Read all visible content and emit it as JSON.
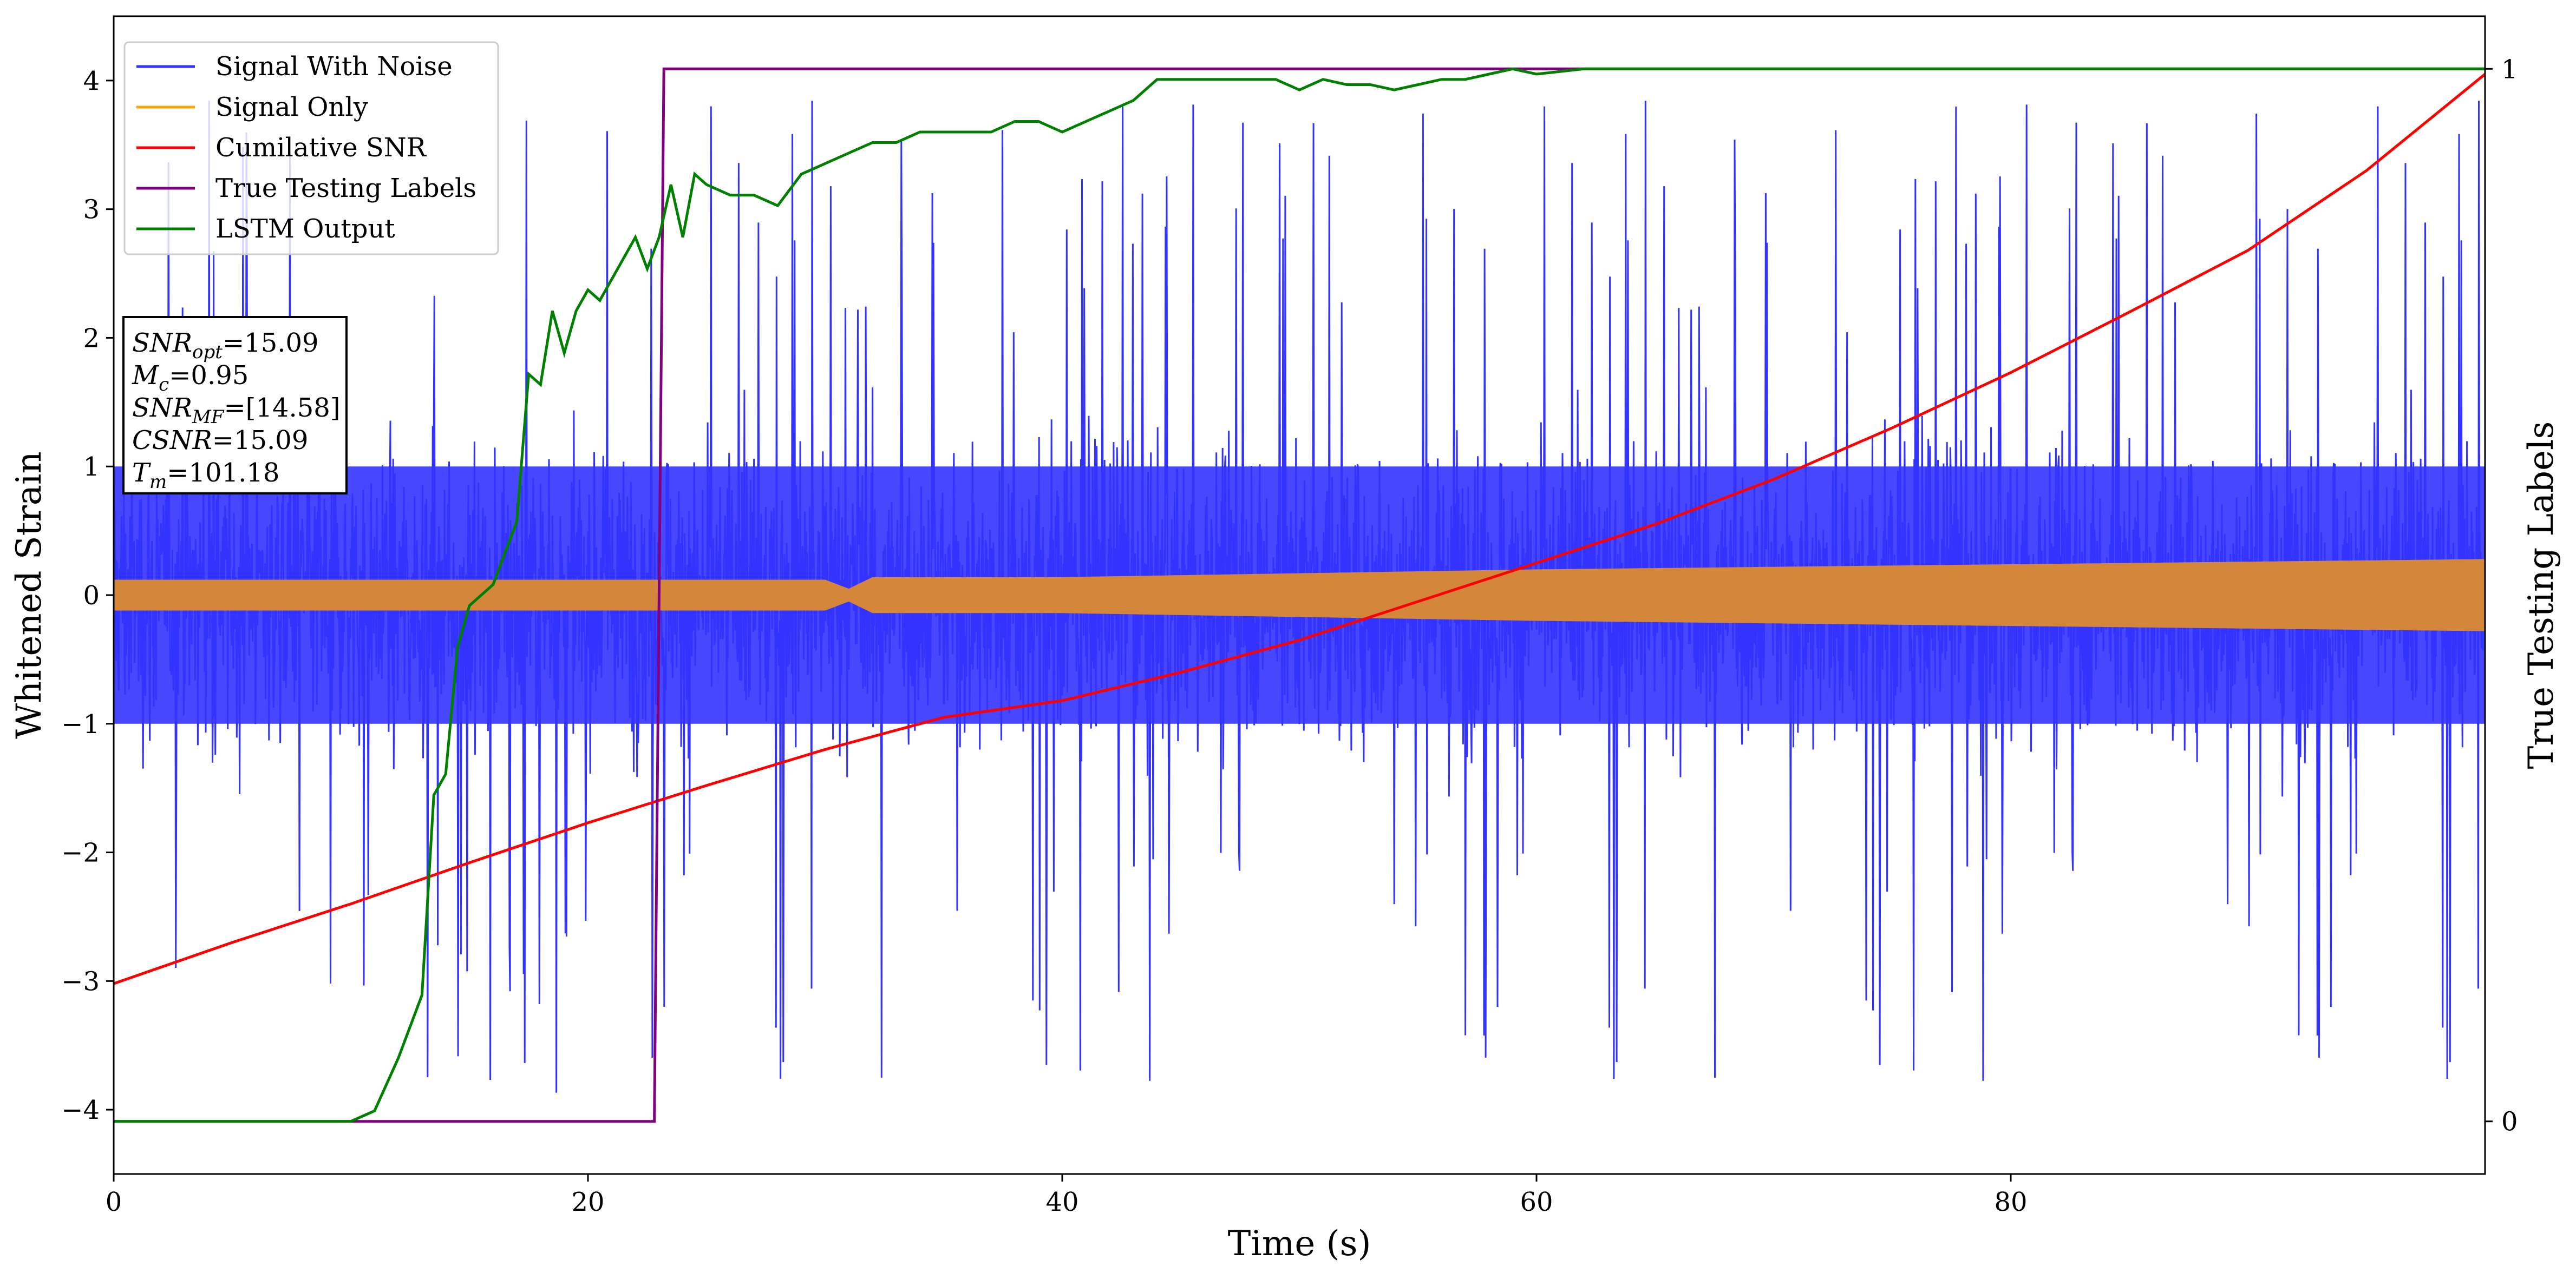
{
  "chart_data": {
    "type": "line",
    "xlabel": "Time (s)",
    "ylabel": "Whitened Strain",
    "ylabel_right": "True Testing Labels",
    "xlim": [
      0,
      100
    ],
    "ylim": [
      -4.5,
      4.5
    ],
    "ylim_right": [
      -0.05,
      1.05
    ],
    "x_ticks": [
      0,
      20,
      40,
      60,
      80
    ],
    "y_ticks": [
      -4,
      -3,
      -2,
      -1,
      0,
      1,
      2,
      3,
      4
    ],
    "y_ticks_right": [
      0,
      1
    ],
    "grid": false,
    "legend_position": "upper left",
    "colors": {
      "signal_with_noise": "#3333ff",
      "signal_only": "#ffa500",
      "signal_overlap": "#d4873a",
      "cumulative_snr": "#ff0000",
      "true_labels": "#800080",
      "lstm_output": "#008000"
    },
    "series": [
      {
        "name": "Signal With Noise",
        "axis": "left",
        "description_values": "dense noise band",
        "band": {
          "core_low": -1.0,
          "core_high": 1.0,
          "spike_low": -4.1,
          "spike_high": 4.1
        }
      },
      {
        "name": "Signal Only",
        "axis": "left",
        "x": [
          0,
          10,
          20,
          30,
          31,
          32,
          40,
          50,
          60,
          70,
          80,
          90,
          100
        ],
        "amplitude": [
          0.12,
          0.12,
          0.12,
          0.12,
          0.05,
          0.14,
          0.14,
          0.17,
          0.2,
          0.22,
          0.24,
          0.26,
          0.28
        ]
      },
      {
        "name": "Cumilative SNR",
        "axis": "left",
        "x": [
          0,
          5,
          10,
          15,
          20,
          25,
          30,
          35,
          40,
          45,
          50,
          55,
          60,
          65,
          70,
          75,
          80,
          85,
          90,
          95,
          100
        ],
        "values": [
          -3.02,
          -2.7,
          -2.4,
          -2.08,
          -1.77,
          -1.48,
          -1.2,
          -0.95,
          -0.82,
          -0.6,
          -0.35,
          -0.05,
          0.25,
          0.55,
          0.9,
          1.3,
          1.73,
          2.2,
          2.68,
          3.3,
          4.05
        ]
      },
      {
        "name": "True Testing Labels",
        "axis": "right",
        "x": [
          0,
          22.8,
          23.2,
          100
        ],
        "values": [
          0,
          0,
          1,
          1
        ]
      },
      {
        "name": "LSTM Output",
        "axis": "right",
        "x": [
          0,
          10,
          11,
          12,
          13,
          13.5,
          14,
          14.5,
          15,
          16,
          17,
          17.5,
          18,
          18.5,
          19,
          19.5,
          20,
          20.5,
          21,
          21.5,
          22,
          22.5,
          23,
          23.5,
          24,
          24.5,
          25,
          26,
          27,
          28,
          29,
          30,
          31,
          32,
          33,
          34,
          35,
          36,
          37,
          38,
          39,
          40,
          41,
          42,
          43,
          44,
          45,
          46,
          47,
          48,
          49,
          50,
          51,
          52,
          53,
          54,
          55,
          56,
          57,
          58,
          59,
          60,
          62,
          65,
          70,
          80,
          90,
          100
        ],
        "values": [
          0,
          0,
          0.01,
          0.06,
          0.12,
          0.31,
          0.33,
          0.45,
          0.49,
          0.51,
          0.57,
          0.71,
          0.7,
          0.77,
          0.73,
          0.77,
          0.79,
          0.78,
          0.8,
          0.82,
          0.84,
          0.81,
          0.84,
          0.89,
          0.84,
          0.9,
          0.89,
          0.88,
          0.88,
          0.87,
          0.9,
          0.91,
          0.92,
          0.93,
          0.93,
          0.94,
          0.94,
          0.94,
          0.94,
          0.95,
          0.95,
          0.94,
          0.95,
          0.96,
          0.97,
          0.99,
          0.99,
          0.99,
          0.99,
          0.99,
          0.99,
          0.98,
          0.99,
          0.985,
          0.985,
          0.98,
          0.985,
          0.99,
          0.99,
          0.995,
          1.0,
          0.995,
          1.0,
          1.0,
          1.0,
          1.0,
          1.0,
          1.0
        ]
      }
    ],
    "legend": [
      "Signal With Noise",
      "Signal Only",
      "Cumilative SNR",
      "True Testing Labels",
      "LSTM Output"
    ],
    "annotation": {
      "lines": [
        {
          "main": "SNR",
          "sub": "opt",
          "value": "=15.09"
        },
        {
          "main": "M",
          "sub": "c",
          "value": "=0.95"
        },
        {
          "main": "SNR",
          "sub": "MF",
          "value": "=[14.58]"
        },
        {
          "main": "CSNR",
          "sub": "",
          "value": "=15.09"
        },
        {
          "main": "T",
          "sub": "m",
          "value": "=101.18"
        }
      ]
    }
  }
}
